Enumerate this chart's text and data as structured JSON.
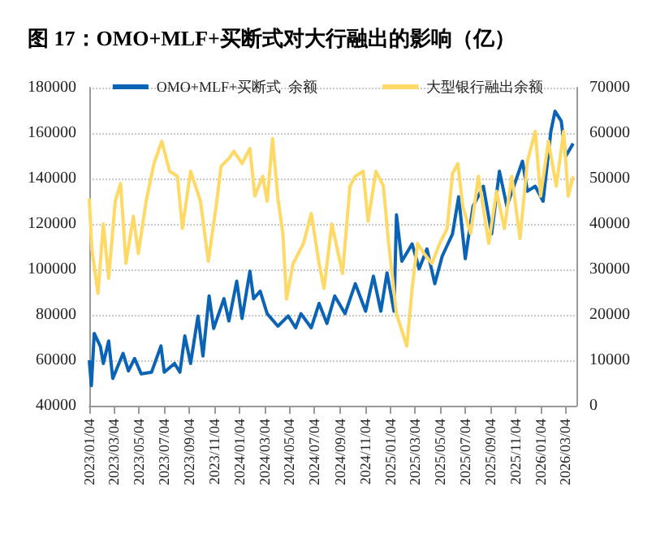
{
  "chart_data": {
    "type": "line",
    "title": "图 17：OMO+MLF+买断式对大行融出的影响（亿）",
    "xlim": [
      "2023-01-04",
      "2026-04-01"
    ],
    "xticks": [
      {
        "value": "2023-01-04",
        "label": "2023/01/04"
      },
      {
        "value": "2023-03-04",
        "label": "2023/03/04"
      },
      {
        "value": "2023-05-04",
        "label": "2023/05/04"
      },
      {
        "value": "2023-07-04",
        "label": "2023/07/04"
      },
      {
        "value": "2023-09-04",
        "label": "2023/09/04"
      },
      {
        "value": "2023-11-04",
        "label": "2023/11/04"
      },
      {
        "value": "2024-01-04",
        "label": "2024/01/04"
      },
      {
        "value": "2024-03-04",
        "label": "2024/03/04"
      },
      {
        "value": "2024-05-04",
        "label": "2024/05/04"
      },
      {
        "value": "2024-07-04",
        "label": "2024/07/04"
      },
      {
        "value": "2024-09-04",
        "label": "2024/09/04"
      },
      {
        "value": "2024-11-04",
        "label": "2024/11/04"
      },
      {
        "value": "2025-01-04",
        "label": "2025/01/04"
      },
      {
        "value": "2025-03-04",
        "label": "2025/03/04"
      },
      {
        "value": "2025-05-04",
        "label": "2025/05/04"
      },
      {
        "value": "2025-07-04",
        "label": "2025/07/04"
      },
      {
        "value": "2025-09-04",
        "label": "2025/09/04"
      },
      {
        "value": "2025-11-04",
        "label": "2025/11/04"
      },
      {
        "value": "2026-01-04",
        "label": "2026/01/04"
      },
      {
        "value": "2026-03-04",
        "label": "2026/03/04"
      }
    ],
    "ylim": [
      40000,
      180000
    ],
    "yticks": [
      40000,
      60000,
      80000,
      100000,
      120000,
      140000,
      160000,
      180000
    ],
    "y2lim": [
      0,
      70000
    ],
    "y2ticks": [
      0,
      10000,
      20000,
      30000,
      40000,
      50000,
      60000,
      70000
    ],
    "grid": "y",
    "legend": "top",
    "marker": "none",
    "line_style": "solid",
    "series": [
      {
        "name": "OMO+MLF+买断式  余额",
        "color": "#0b63b5",
        "x": [
          "2023-01-04",
          "2023-01-09",
          "2023-01-16",
          "2023-01-31",
          "2023-02-07",
          "2023-02-20",
          "2023-03-02",
          "2023-03-27",
          "2023-04-09",
          "2023-04-24",
          "2023-05-10",
          "2023-06-04",
          "2023-06-27",
          "2023-07-05",
          "2023-07-30",
          "2023-08-12",
          "2023-08-24",
          "2023-09-07",
          "2023-09-25",
          "2023-10-07",
          "2023-10-22",
          "2023-11-02",
          "2023-11-27",
          "2023-12-09",
          "2023-12-28",
          "2024-01-10",
          "2024-01-29",
          "2024-02-07",
          "2024-02-23",
          "2024-03-11",
          "2024-04-06",
          "2024-05-01",
          "2024-05-19",
          "2024-06-01",
          "2024-06-26",
          "2024-07-15",
          "2024-08-03",
          "2024-08-22",
          "2024-09-16",
          "2024-10-11",
          "2024-11-05",
          "2024-11-24",
          "2024-12-12",
          "2024-12-27",
          "2025-01-13",
          "2025-01-19",
          "2025-02-01",
          "2025-02-26",
          "2025-03-15",
          "2025-04-03",
          "2025-04-22",
          "2025-05-10",
          "2025-06-04",
          "2025-06-19",
          "2025-07-05",
          "2025-07-24",
          "2025-08-18",
          "2025-09-07",
          "2025-09-26",
          "2025-10-14",
          "2025-11-21",
          "2025-12-03",
          "2025-12-22",
          "2026-01-10",
          "2026-01-29",
          "2026-02-08",
          "2026-02-23",
          "2026-03-06",
          "2026-03-24"
        ],
        "values": [
          60000,
          48800,
          71800,
          66000,
          58600,
          68500,
          52000,
          63000,
          55300,
          60800,
          54000,
          54700,
          66300,
          54700,
          58600,
          54700,
          70700,
          58600,
          79500,
          61900,
          88300,
          74000,
          87100,
          77300,
          94800,
          78400,
          99200,
          87100,
          90400,
          80500,
          75000,
          79500,
          74300,
          80500,
          74300,
          85000,
          76200,
          88300,
          80500,
          93700,
          81600,
          97000,
          81600,
          98500,
          81600,
          124000,
          103600,
          111200,
          100300,
          109000,
          93700,
          105800,
          115600,
          132000,
          104700,
          127800,
          136600,
          115600,
          143200,
          127800,
          147600,
          134400,
          136600,
          130000,
          160800,
          169600,
          165300,
          149800,
          155400
        ]
      },
      {
        "name": "大型银行融出余额",
        "color": "#ffd966",
        "axis": "y2",
        "x": [
          "2023-01-04",
          "2023-01-10",
          "2023-01-25",
          "2023-02-07",
          "2023-02-20",
          "2023-03-08",
          "2023-03-21",
          "2023-04-03",
          "2023-04-21",
          "2023-05-03",
          "2023-05-22",
          "2023-06-10",
          "2023-06-29",
          "2023-07-18",
          "2023-08-06",
          "2023-08-18",
          "2023-09-07",
          "2023-10-01",
          "2023-10-20",
          "2023-11-08",
          "2023-11-20",
          "2023-12-09",
          "2023-12-21",
          "2024-01-10",
          "2024-01-29",
          "2024-02-10",
          "2024-02-29",
          "2024-03-11",
          "2024-03-24",
          "2024-04-06",
          "2024-04-18",
          "2024-04-27",
          "2024-05-13",
          "2024-06-07",
          "2024-06-26",
          "2024-07-15",
          "2024-07-27",
          "2024-08-15",
          "2024-09-10",
          "2024-09-28",
          "2024-10-11",
          "2024-10-30",
          "2024-11-11",
          "2024-11-30",
          "2024-12-18",
          "2024-12-31",
          "2025-01-19",
          "2025-02-13",
          "2025-02-26",
          "2025-03-11",
          "2025-03-27",
          "2025-04-15",
          "2025-05-04",
          "2025-05-22",
          "2025-06-04",
          "2025-06-17",
          "2025-06-29",
          "2025-07-18",
          "2025-08-06",
          "2025-08-31",
          "2025-09-19",
          "2025-10-08",
          "2025-10-26",
          "2025-11-15",
          "2025-12-03",
          "2025-12-22",
          "2026-01-04",
          "2026-01-23",
          "2026-02-11",
          "2026-03-01",
          "2026-03-12",
          "2026-03-24"
        ],
        "values": [
          45600,
          34600,
          24700,
          40000,
          28000,
          45000,
          48900,
          31300,
          41700,
          33500,
          45000,
          53300,
          58200,
          51600,
          50500,
          39000,
          51600,
          45000,
          31800,
          43900,
          52700,
          54400,
          56000,
          53300,
          56600,
          46100,
          50500,
          45000,
          58800,
          45600,
          37900,
          23500,
          31300,
          35700,
          42300,
          31300,
          25800,
          40000,
          29100,
          48300,
          50500,
          51600,
          40600,
          51600,
          48400,
          35700,
          20200,
          13100,
          25800,
          35700,
          33500,
          31300,
          35700,
          39000,
          51100,
          53300,
          43900,
          37900,
          50500,
          35700,
          47200,
          39000,
          50500,
          36800,
          53800,
          60400,
          46100,
          58200,
          48300,
          60400,
          46100,
          50500
        ]
      }
    ]
  }
}
